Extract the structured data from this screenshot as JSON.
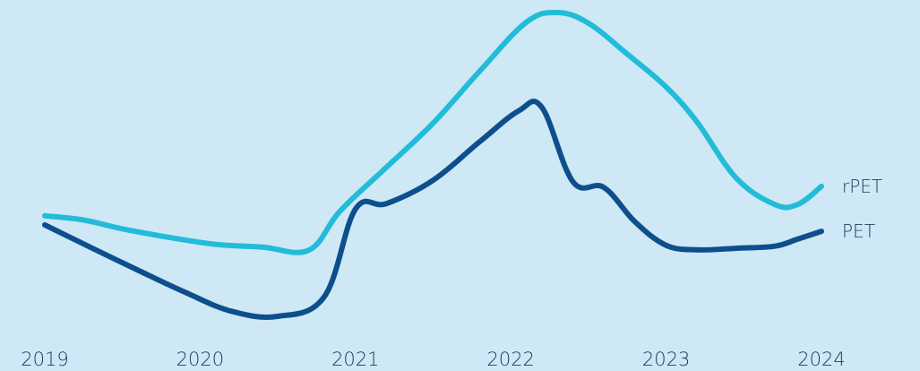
{
  "colors": {
    "background": "#cfe8f5",
    "rpet": "#22bcd8",
    "pet": "#0d4f8c",
    "text": "#1a3d5c"
  },
  "chart_data": {
    "type": "line",
    "title": "",
    "xlabel": "",
    "ylabel": "",
    "x_ticks": [
      "2019",
      "2020",
      "2021",
      "2022",
      "2023",
      "2024"
    ],
    "xlim": [
      2019,
      2024
    ],
    "ylim": [
      0,
      100
    ],
    "grid": false,
    "legend": "none (series labelled at line ends)",
    "series": [
      {
        "name": "rPET",
        "color": "#22bcd8",
        "x": [
          2019.0,
          2019.25,
          2019.5,
          2019.8,
          2020.1,
          2020.4,
          2020.7,
          2020.9,
          2021.2,
          2021.5,
          2021.8,
          2022.1,
          2022.3,
          2022.5,
          2022.75,
          2023.0,
          2023.2,
          2023.45,
          2023.7,
          2023.85,
          2024.0
        ],
        "values": [
          33.1,
          31.7,
          28.8,
          26.0,
          23.7,
          22.8,
          21.8,
          34.6,
          49.1,
          63.6,
          80.7,
          96.8,
          100.0,
          96.5,
          86.3,
          75.5,
          63.9,
          45.6,
          36.8,
          36.9,
          42.8
        ]
      },
      {
        "name": "PET",
        "color": "#0d4f8c",
        "x": [
          2019.0,
          2019.3,
          2019.6,
          2019.9,
          2020.2,
          2020.5,
          2020.8,
          2021.0,
          2021.2,
          2021.5,
          2021.8,
          2022.05,
          2022.2,
          2022.4,
          2022.6,
          2022.8,
          2023.0,
          2023.2,
          2023.45,
          2023.7,
          2023.85,
          2024.0
        ],
        "values": [
          30.1,
          22.6,
          15.2,
          8.0,
          1.7,
          0.0,
          6.5,
          35.3,
          37.1,
          44.8,
          57.5,
          67.6,
          68.8,
          44.3,
          42.4,
          31.1,
          23.4,
          21.9,
          22.4,
          23.1,
          25.5,
          28.0
        ]
      }
    ]
  }
}
